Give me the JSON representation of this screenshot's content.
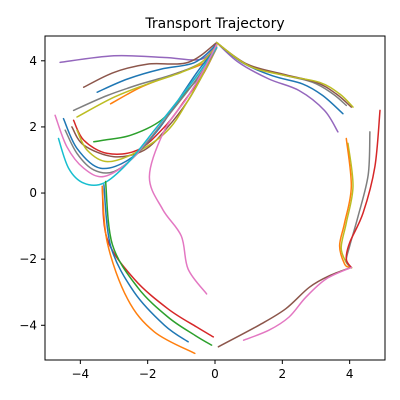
{
  "chart_data": {
    "type": "line",
    "title": "Transport Trajectory",
    "xlabel": "",
    "ylabel": "",
    "xlim": [
      -5.05,
      5.05
    ],
    "ylim": [
      -5.05,
      4.75
    ],
    "xticks": [
      -4,
      -2,
      0,
      2,
      4
    ],
    "yticks": [
      4,
      2,
      0,
      -2,
      -4
    ],
    "xtick_labels": [
      "−4",
      "−2",
      "0",
      "2",
      "4"
    ],
    "ytick_labels": [
      "4",
      "2",
      "0",
      "−2",
      "−4"
    ],
    "grid": false,
    "legend": false,
    "series": [
      {
        "color": "#9467bd",
        "x": [
          -4.6,
          -3.0,
          -1.5,
          -0.4,
          0.05
        ],
        "y": [
          3.95,
          4.15,
          4.1,
          4.05,
          4.55
        ]
      },
      {
        "color": "#8c564b",
        "x": [
          -3.9,
          -3.0,
          -2.0,
          -0.8,
          0.05
        ],
        "y": [
          3.2,
          3.65,
          3.9,
          3.95,
          4.55
        ]
      },
      {
        "color": "#1f77b4",
        "x": [
          -3.5,
          -2.6,
          -1.6,
          -0.6,
          0.05
        ],
        "y": [
          3.05,
          3.45,
          3.75,
          3.95,
          4.5
        ]
      },
      {
        "color": "#ff7f0e",
        "x": [
          -3.1,
          -2.2,
          -1.2,
          -0.3,
          0.05
        ],
        "y": [
          2.7,
          3.2,
          3.6,
          3.95,
          4.5
        ]
      },
      {
        "color": "#7f7f7f",
        "x": [
          -4.2,
          -3.2,
          -2.2,
          -1.2,
          -0.4,
          0.05
        ],
        "y": [
          2.5,
          2.95,
          3.3,
          3.6,
          3.95,
          4.45
        ]
      },
      {
        "color": "#bcbd22",
        "x": [
          -4.1,
          -3.0,
          -2.0,
          -1.0,
          -0.4,
          0.05
        ],
        "y": [
          2.3,
          2.9,
          3.3,
          3.65,
          3.95,
          4.45
        ]
      },
      {
        "color": "#2ca02c",
        "x": [
          -3.3,
          -3.6,
          -3.3,
          -2.5,
          -1.6,
          -1.0,
          -0.4,
          0.05
        ],
        "y": [
          1.6,
          1.55,
          1.6,
          1.75,
          2.2,
          2.9,
          3.6,
          4.4
        ]
      },
      {
        "color": "#d62728",
        "x": [
          -4.2,
          -3.9,
          -3.2,
          -2.3,
          -1.5,
          -0.9,
          -0.35,
          0.05
        ],
        "y": [
          2.2,
          1.6,
          1.2,
          1.3,
          2.0,
          2.8,
          3.6,
          4.4
        ]
      },
      {
        "color": "#8c564b",
        "x": [
          -4.25,
          -3.9,
          -3.0,
          -2.1,
          -1.4,
          -0.8,
          -0.3,
          0.05
        ],
        "y": [
          2.0,
          1.45,
          1.1,
          1.3,
          2.0,
          2.8,
          3.7,
          4.4
        ]
      },
      {
        "color": "#bcbd22",
        "x": [
          -4.1,
          -3.8,
          -3.2,
          -2.3,
          -1.4,
          -0.8,
          -0.3,
          0.05
        ],
        "y": [
          1.9,
          1.3,
          0.95,
          1.25,
          1.9,
          2.8,
          3.7,
          4.4
        ]
      },
      {
        "color": "#1f77b4",
        "x": [
          -4.5,
          -4.1,
          -3.4,
          -2.5,
          -1.7,
          -1.1,
          -0.5,
          0.05
        ],
        "y": [
          2.25,
          1.35,
          0.75,
          1.05,
          1.9,
          2.8,
          3.7,
          4.4
        ]
      },
      {
        "color": "#7f7f7f",
        "x": [
          -4.45,
          -4.1,
          -3.6,
          -3.0,
          -2.3,
          -1.5,
          -0.8,
          -0.3,
          0.05
        ],
        "y": [
          1.9,
          1.2,
          0.7,
          0.65,
          1.2,
          2.2,
          3.1,
          3.8,
          4.4
        ]
      },
      {
        "color": "#e377c2",
        "x": [
          -4.75,
          -4.4,
          -3.9,
          -3.3,
          -2.5,
          -1.8,
          -1.1,
          -0.5,
          0.05
        ],
        "y": [
          2.35,
          1.4,
          0.75,
          0.5,
          1.0,
          1.9,
          2.8,
          3.6,
          4.4
        ]
      },
      {
        "color": "#17becf",
        "x": [
          -4.65,
          -4.35,
          -3.9,
          -3.3,
          -2.6,
          -1.8,
          -1.1,
          -0.5,
          0.05
        ],
        "y": [
          1.65,
          0.75,
          0.3,
          0.3,
          0.9,
          1.9,
          2.8,
          3.6,
          4.4
        ]
      },
      {
        "color": "#e377c2",
        "x": [
          0.05,
          -0.35,
          -0.85,
          -1.5,
          -1.95,
          -1.55,
          -1.0,
          -0.8,
          -0.25
        ],
        "y": [
          4.5,
          3.7,
          2.85,
          1.9,
          0.5,
          -0.5,
          -1.3,
          -2.3,
          -3.05
        ]
      },
      {
        "color": "#9467bd",
        "x": [
          0.05,
          0.7,
          1.6,
          2.5,
          3.25,
          3.65
        ],
        "y": [
          4.55,
          3.95,
          3.45,
          3.1,
          2.5,
          1.85
        ]
      },
      {
        "color": "#1f77b4",
        "x": [
          0.05,
          0.8,
          1.7,
          2.6,
          3.2,
          3.8
        ],
        "y": [
          4.55,
          3.95,
          3.55,
          3.3,
          2.95,
          2.4
        ]
      },
      {
        "color": "#7f7f7f",
        "x": [
          0.05,
          0.9,
          1.9,
          2.9,
          3.5,
          3.9
        ],
        "y": [
          4.55,
          3.9,
          3.6,
          3.35,
          3.0,
          2.65
        ]
      },
      {
        "color": "#8c564b",
        "x": [
          0.05,
          0.95,
          2.0,
          3.0,
          3.6,
          4.05
        ],
        "y": [
          4.55,
          3.9,
          3.6,
          3.35,
          3.0,
          2.6
        ]
      },
      {
        "color": "#bcbd22",
        "x": [
          0.05,
          1.0,
          2.1,
          3.1,
          3.7,
          4.1
        ],
        "y": [
          4.55,
          3.85,
          3.55,
          3.35,
          3.0,
          2.6
        ]
      },
      {
        "color": "#bcbd22",
        "x": [
          3.95,
          4.1,
          3.9,
          3.75,
          3.9,
          4.05,
          4.05
        ],
        "y": [
          1.5,
          0.2,
          -0.9,
          -1.65,
          -2.1,
          -2.25,
          -2.25
        ]
      },
      {
        "color": "#ff7f0e",
        "x": [
          3.9,
          4.05,
          3.85,
          3.7,
          3.85,
          4.0
        ],
        "y": [
          1.65,
          0.2,
          -0.9,
          -1.6,
          -2.15,
          -2.25
        ]
      },
      {
        "color": "#7f7f7f",
        "x": [
          4.6,
          4.55,
          4.25,
          4.0,
          3.9,
          4.05
        ],
        "y": [
          1.85,
          0.55,
          -0.7,
          -1.6,
          -2.05,
          -2.25
        ]
      },
      {
        "color": "#d62728",
        "x": [
          4.9,
          4.75,
          4.4,
          4.0,
          3.9,
          4.05
        ],
        "y": [
          2.5,
          0.8,
          -0.6,
          -1.5,
          -2.0,
          -2.25
        ]
      },
      {
        "color": "#8c564b",
        "x": [
          4.05,
          3.4,
          2.8,
          2.1,
          1.3,
          0.1
        ],
        "y": [
          -2.25,
          -2.5,
          -2.85,
          -3.5,
          -4.0,
          -4.65
        ]
      },
      {
        "color": "#e377c2",
        "x": [
          4.05,
          3.3,
          2.7,
          2.2,
          1.6,
          0.85
        ],
        "y": [
          -2.25,
          -2.6,
          -3.15,
          -3.75,
          -4.15,
          -4.45
        ]
      },
      {
        "color": "#d62728",
        "x": [
          -3.35,
          -3.2,
          -2.4,
          -1.4,
          -0.55,
          -0.05
        ],
        "y": [
          0.2,
          -1.4,
          -2.6,
          -3.5,
          -4.05,
          -4.35
        ]
      },
      {
        "color": "#2ca02c",
        "x": [
          -3.25,
          -3.05,
          -2.3,
          -1.4,
          -0.6,
          -0.1
        ],
        "y": [
          0.35,
          -1.55,
          -2.85,
          -3.75,
          -4.3,
          -4.6
        ]
      },
      {
        "color": "#1f77b4",
        "x": [
          -3.3,
          -3.1,
          -2.4,
          -1.5,
          -0.8
        ],
        "y": [
          0.25,
          -1.6,
          -3.0,
          -4.0,
          -4.5
        ]
      },
      {
        "color": "#ff7f0e",
        "x": [
          -3.35,
          -3.2,
          -2.6,
          -1.8,
          -0.6
        ],
        "y": [
          0.2,
          -1.5,
          -3.2,
          -4.2,
          -4.85
        ]
      }
    ]
  }
}
